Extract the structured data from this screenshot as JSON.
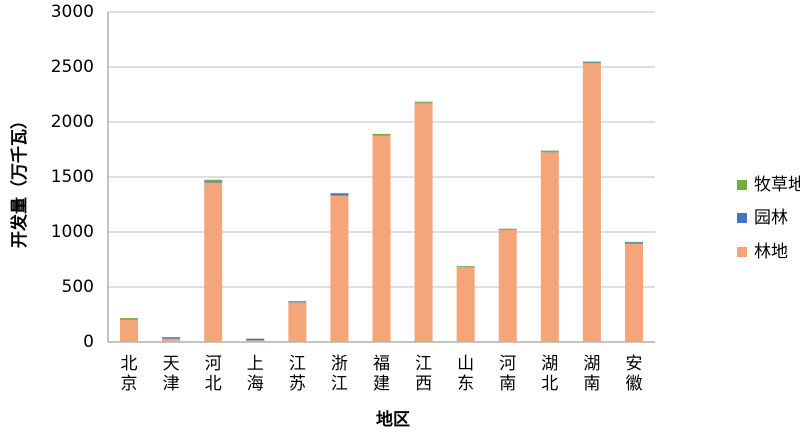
{
  "chart_data": {
    "type": "stacked_bar",
    "y_label": "开发量（万千瓦）",
    "x_label": "地区",
    "categories": [
      "北京",
      "天津",
      "河北",
      "上海",
      "江苏",
      "浙江",
      "福建",
      "江西",
      "山东",
      "河南",
      "湖北",
      "湖南",
      "安徽"
    ],
    "series": [
      {
        "name": "林地",
        "color": "#f4a57a",
        "values": [
          205,
          30,
          1450,
          15,
          360,
          1330,
          1875,
          2170,
          680,
          1020,
          1725,
          2535,
          895
        ]
      },
      {
        "name": "园林",
        "color": "#4472c4",
        "values": [
          5,
          12,
          10,
          15,
          5,
          15,
          5,
          5,
          3,
          3,
          5,
          5,
          10
        ]
      },
      {
        "name": "牧草地",
        "color": "#70ad47",
        "values": [
          8,
          3,
          15,
          2,
          8,
          10,
          12,
          10,
          7,
          7,
          10,
          10,
          5
        ]
      }
    ],
    "ylim": [
      0,
      3000
    ],
    "yticks": [
      0,
      500,
      1000,
      1500,
      2000,
      2500,
      3000
    ],
    "grid": true
  }
}
